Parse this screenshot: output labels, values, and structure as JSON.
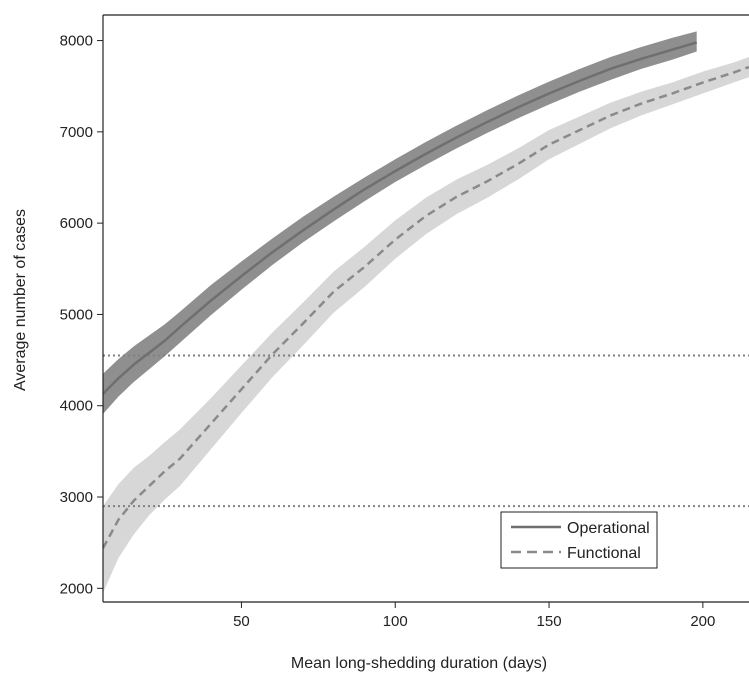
{
  "chart_data": {
    "type": "line",
    "title": "",
    "xlabel": "Mean long-shedding duration (days)",
    "ylabel": "Average number of cases",
    "xlim": [
      5,
      215
    ],
    "ylim": [
      1850,
      8280
    ],
    "xticks": [
      50,
      100,
      150,
      200
    ],
    "yticks": [
      2000,
      3000,
      4000,
      5000,
      6000,
      7000,
      8000
    ],
    "xtick_labels": [
      "50",
      "100",
      "150",
      "200"
    ],
    "ytick_labels": [
      "2000",
      "3000",
      "4000",
      "5000",
      "6000",
      "7000",
      "8000"
    ],
    "legend": {
      "position": "bottom-right"
    },
    "series": [
      {
        "name": "Operational",
        "style": "solid",
        "color": "#7a7a7a",
        "band_color": "#8f8f8f",
        "x": [
          5,
          10,
          15,
          20,
          25,
          30,
          40,
          50,
          60,
          70,
          80,
          90,
          100,
          110,
          120,
          130,
          140,
          150,
          160,
          170,
          180,
          190,
          198
        ],
        "y": [
          4130,
          4300,
          4450,
          4580,
          4710,
          4860,
          5150,
          5420,
          5680,
          5920,
          6150,
          6370,
          6570,
          6760,
          6940,
          7110,
          7270,
          7420,
          7560,
          7690,
          7800,
          7900,
          7980
        ],
        "y_low": [
          3910,
          4100,
          4260,
          4400,
          4540,
          4690,
          4990,
          5270,
          5540,
          5790,
          6020,
          6240,
          6450,
          6640,
          6820,
          6990,
          7150,
          7300,
          7440,
          7570,
          7690,
          7790,
          7880
        ],
        "y_high": [
          4350,
          4510,
          4650,
          4770,
          4890,
          5030,
          5320,
          5580,
          5830,
          6070,
          6290,
          6500,
          6700,
          6890,
          7070,
          7240,
          7400,
          7550,
          7690,
          7820,
          7930,
          8030,
          8100
        ]
      },
      {
        "name": "Functional",
        "style": "dashed",
        "color": "#8a8a8a",
        "band_color": "#d7d7d7",
        "x": [
          5,
          10,
          15,
          20,
          25,
          30,
          40,
          50,
          60,
          70,
          80,
          90,
          100,
          110,
          120,
          130,
          140,
          150,
          160,
          170,
          180,
          190,
          200,
          210,
          215
        ],
        "y": [
          2440,
          2750,
          2960,
          3120,
          3280,
          3420,
          3800,
          4180,
          4560,
          4900,
          5250,
          5520,
          5820,
          6080,
          6290,
          6460,
          6650,
          6860,
          7020,
          7180,
          7310,
          7420,
          7540,
          7650,
          7710
        ],
        "y_low": [
          1950,
          2330,
          2590,
          2800,
          2970,
          3120,
          3520,
          3920,
          4310,
          4660,
          5020,
          5300,
          5610,
          5880,
          6100,
          6280,
          6480,
          6700,
          6870,
          7040,
          7180,
          7300,
          7420,
          7540,
          7600
        ],
        "y_high": [
          2900,
          3140,
          3320,
          3450,
          3600,
          3740,
          4080,
          4440,
          4800,
          5130,
          5470,
          5740,
          6030,
          6280,
          6480,
          6640,
          6820,
          7020,
          7170,
          7320,
          7440,
          7540,
          7660,
          7760,
          7820
        ]
      }
    ],
    "reference_lines": [
      {
        "y": 4550,
        "style": "dotted",
        "color": "#808080"
      },
      {
        "y": 2900,
        "style": "dotted",
        "color": "#808080"
      }
    ]
  }
}
